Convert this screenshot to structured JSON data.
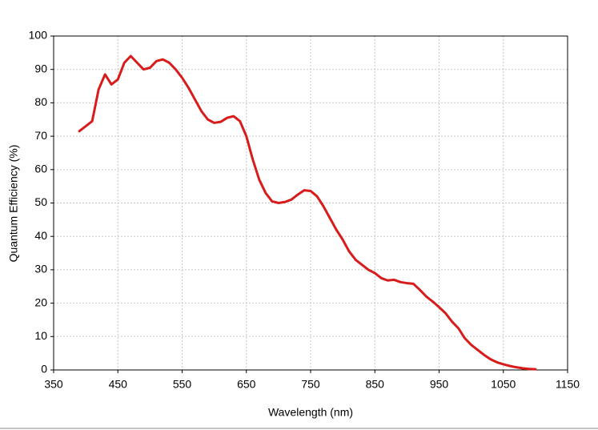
{
  "chart_data": {
    "type": "line",
    "xlabel": "Wavelength  (nm)",
    "ylabel": "Quantum  Efficiency (%)",
    "x": [
      390,
      400,
      410,
      420,
      430,
      440,
      450,
      460,
      470,
      480,
      490,
      500,
      510,
      520,
      530,
      540,
      550,
      560,
      570,
      580,
      590,
      600,
      610,
      620,
      630,
      640,
      650,
      660,
      670,
      680,
      690,
      700,
      710,
      720,
      730,
      740,
      750,
      760,
      770,
      780,
      790,
      800,
      810,
      820,
      830,
      840,
      850,
      860,
      870,
      880,
      890,
      900,
      910,
      920,
      930,
      940,
      950,
      960,
      970,
      980,
      990,
      1000,
      1010,
      1020,
      1030,
      1040,
      1050,
      1060,
      1070,
      1080,
      1090,
      1100
    ],
    "series": [
      {
        "color": "#d81b1b",
        "values": [
          71.5,
          73,
          74.5,
          84,
          88.5,
          85.5,
          87,
          92,
          94,
          92,
          90,
          90.5,
          92.5,
          93,
          92,
          90,
          87.5,
          84.5,
          81,
          77.5,
          75,
          74,
          74.3,
          75.5,
          76,
          74.5,
          70,
          63,
          57,
          53,
          50.5,
          50,
          50.3,
          51,
          52.5,
          53.8,
          53.6,
          52,
          49,
          45.5,
          42,
          39,
          35.5,
          33,
          31.5,
          30,
          29,
          27.5,
          26.8,
          27,
          26.3,
          26,
          25.8,
          24,
          22,
          20.5,
          18.8,
          17,
          14.5,
          12.5,
          9.5,
          7.5,
          6,
          4.5,
          3.2,
          2.3,
          1.7,
          1.2,
          0.8,
          0.5,
          0.3,
          0.2
        ]
      }
    ],
    "xlim": [
      350,
      1150
    ],
    "xticks": [
      350,
      450,
      550,
      650,
      750,
      850,
      950,
      1050,
      1150
    ],
    "ylim": [
      0,
      100
    ],
    "yticks": [
      0,
      10,
      20,
      30,
      40,
      50,
      60,
      70,
      80,
      90,
      100
    ],
    "grid": true
  }
}
